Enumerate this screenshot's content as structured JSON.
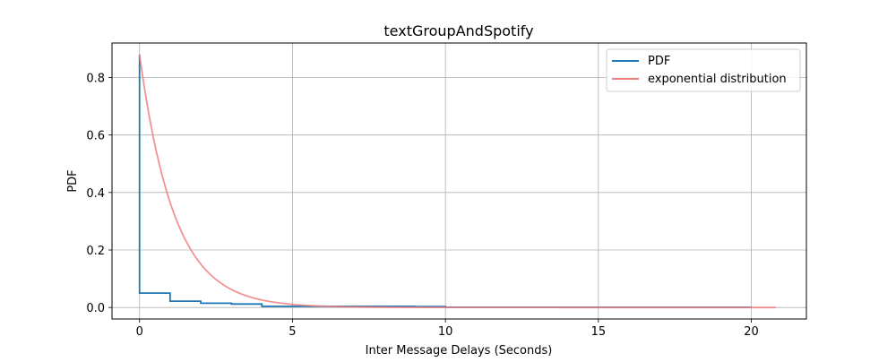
{
  "chart_data": {
    "type": "line",
    "title": "textGroupAndSpotify",
    "xlabel": "Inter Message Delays (Seconds)",
    "ylabel": "PDF",
    "xlim": [
      -0.9,
      21.8
    ],
    "ylim": [
      -0.04,
      0.92
    ],
    "xticks": [
      0,
      5,
      10,
      15,
      20
    ],
    "yticks": [
      0.0,
      0.2,
      0.4,
      0.6,
      0.8
    ],
    "xtick_labels": [
      "0",
      "5",
      "10",
      "15",
      "20"
    ],
    "ytick_labels": [
      "0.0",
      "0.2",
      "0.4",
      "0.6",
      "0.8"
    ],
    "grid": true,
    "legend_position": "top-right",
    "series": [
      {
        "name": "PDF",
        "kind": "step",
        "color": "#1f77b4",
        "x": [
          0,
          0,
          1,
          2,
          3,
          4,
          9,
          10,
          20
        ],
        "y": [
          0.88,
          0.05,
          0.022,
          0.015,
          0.012,
          0.004,
          0.003,
          0.001,
          0.001
        ]
      },
      {
        "name": "exponential distribution",
        "kind": "function",
        "color": "#f08080",
        "rate": 0.88,
        "x_start": 0,
        "x_end": 20.8
      }
    ]
  }
}
